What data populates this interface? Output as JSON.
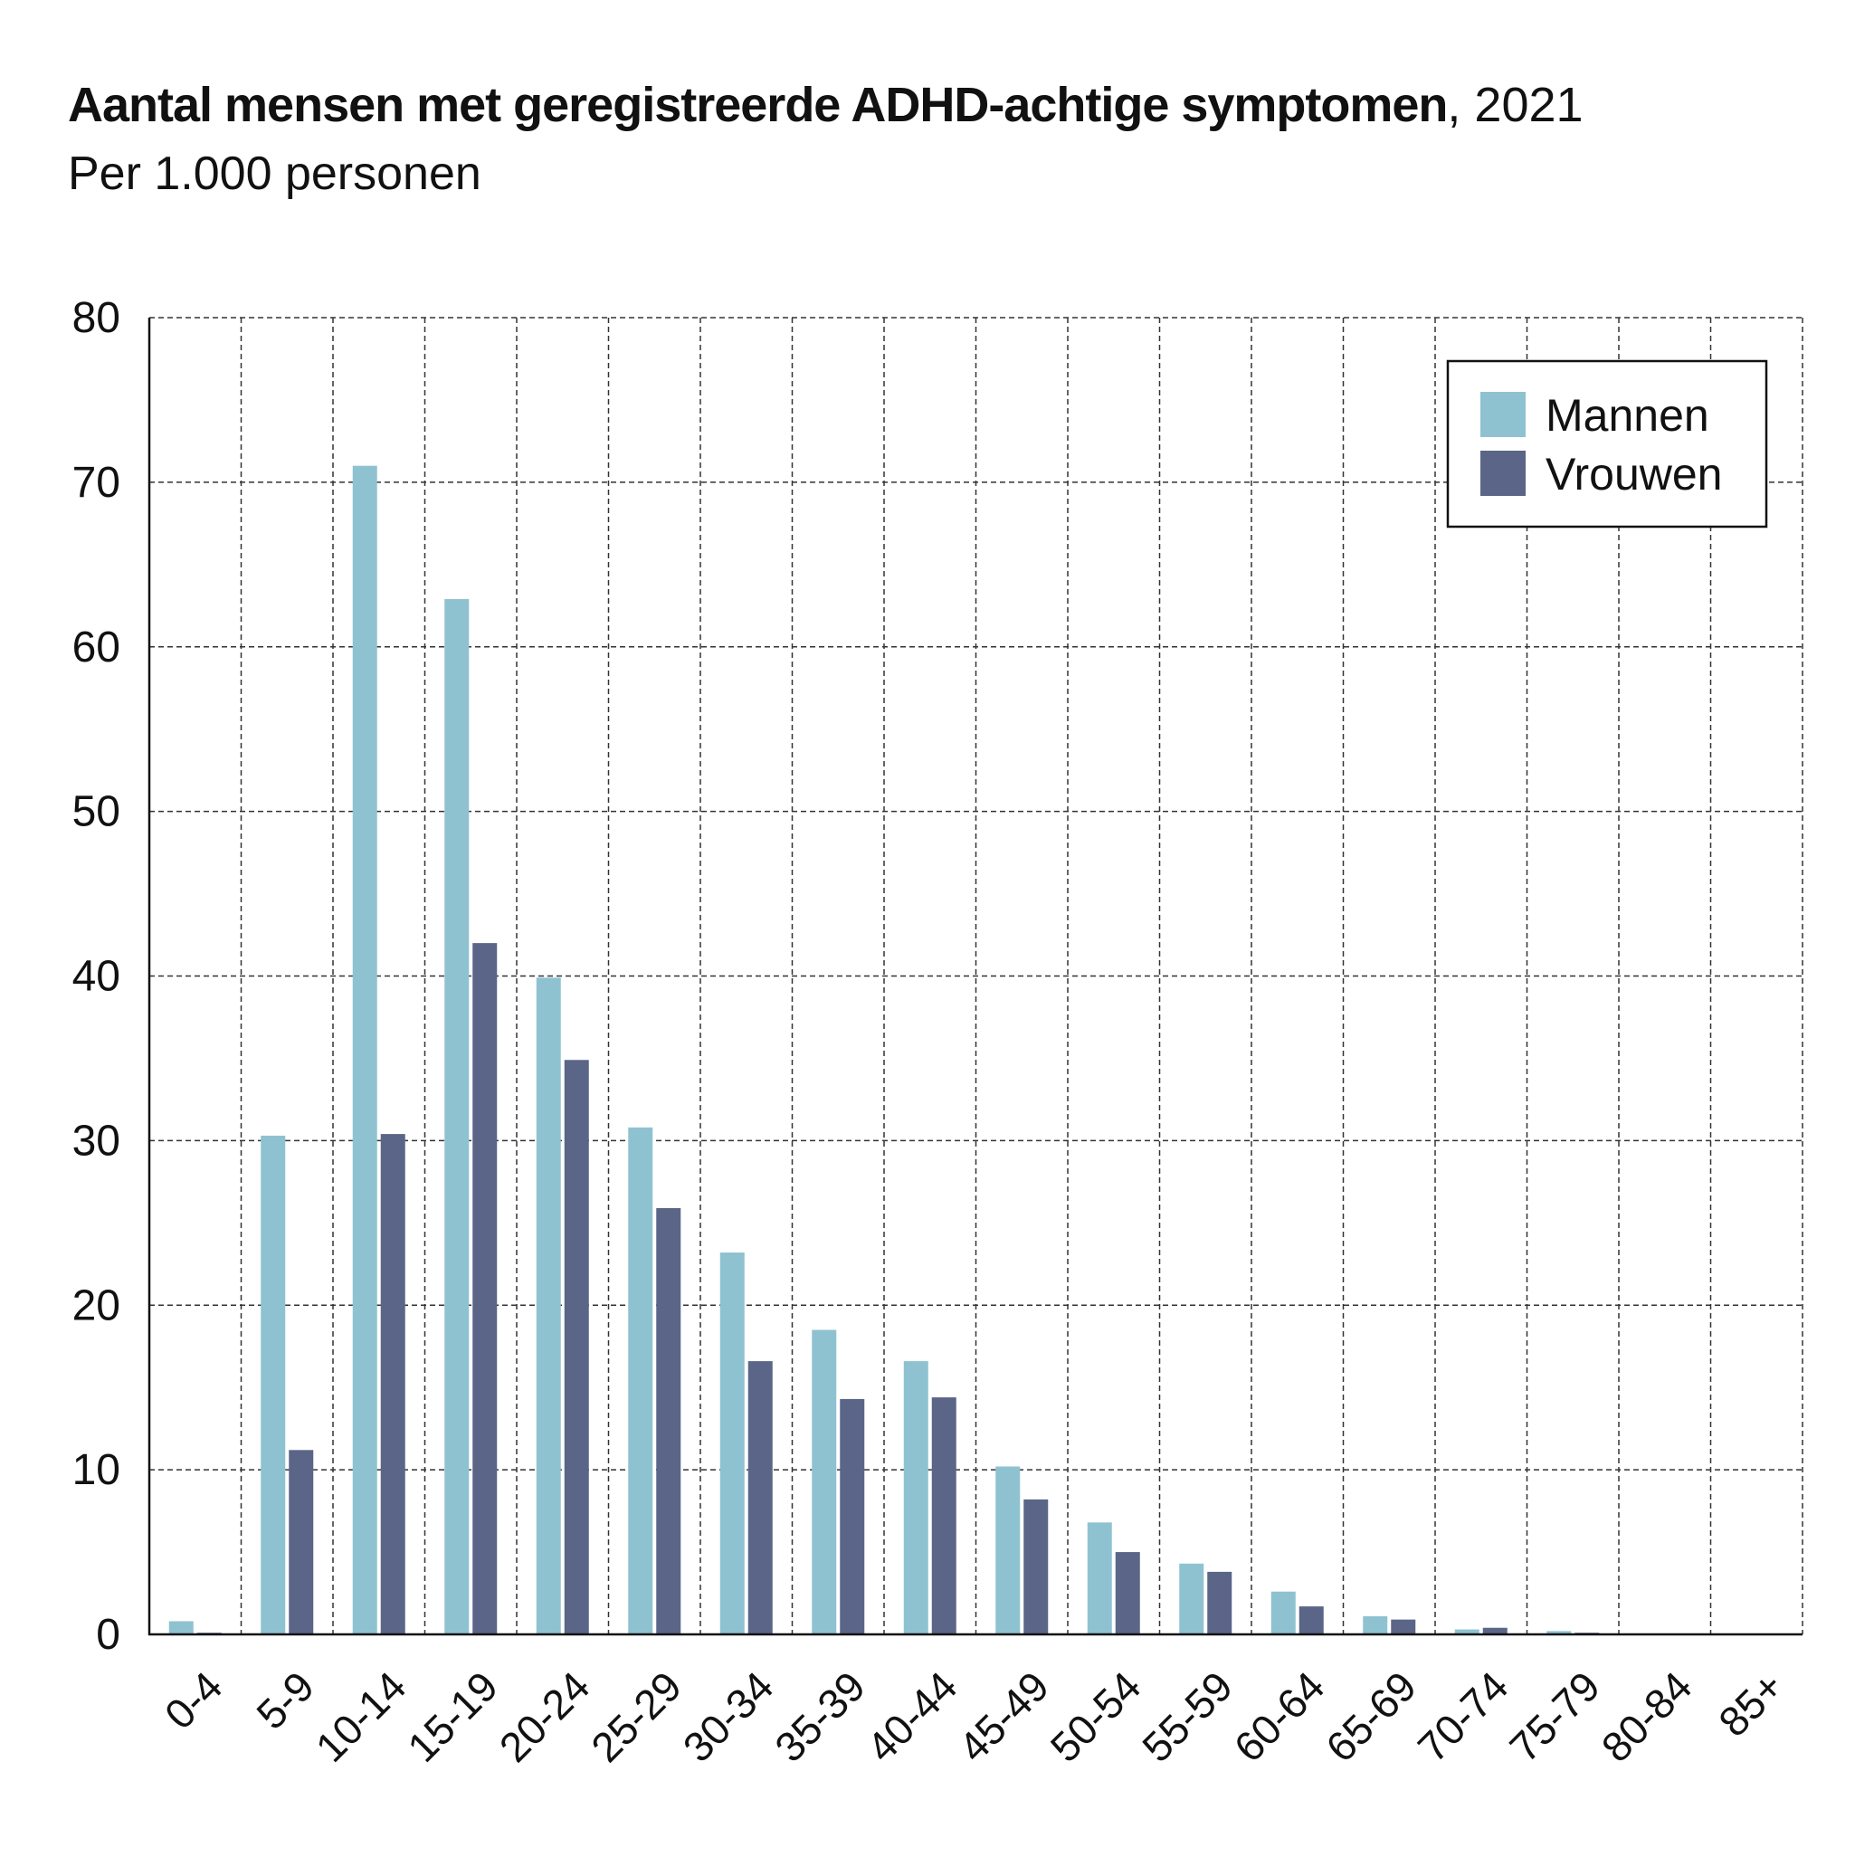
{
  "title": "Aantal mensen met geregistreerde ADHD-achtige symptomen",
  "title_suffix": ", 2021",
  "subtitle": "Per 1.000 personen",
  "colors": {
    "mannen": "#8fc2d1",
    "vrouwen": "#5a6588",
    "grid": "#333333",
    "axis": "#111111"
  },
  "chart_data": {
    "type": "bar",
    "title": "Aantal mensen met geregistreerde ADHD-achtige symptomen, 2021",
    "subtitle": "Per 1.000 personen",
    "xlabel": "",
    "ylabel": "",
    "ylim": [
      0,
      80
    ],
    "yticks": [
      "0",
      "10",
      "20",
      "30",
      "40",
      "50",
      "60",
      "70",
      "80"
    ],
    "grid": true,
    "grid_style": "dashed",
    "legend_position": "top-right",
    "categories": [
      "0-4",
      "5-9",
      "10-14",
      "15-19",
      "20-24",
      "25-29",
      "30-34",
      "35-39",
      "40-44",
      "45-49",
      "50-54",
      "55-59",
      "60-64",
      "65-69",
      "70-74",
      "75-79",
      "80-84",
      "85+"
    ],
    "series": [
      {
        "name": "Mannen",
        "color": "#8fc2d1",
        "values": [
          0.8,
          30.3,
          71.0,
          62.9,
          39.9,
          30.8,
          23.2,
          18.5,
          16.6,
          10.2,
          6.8,
          4.3,
          2.6,
          1.1,
          0.3,
          0.2,
          0.0,
          0.0
        ]
      },
      {
        "name": "Vrouwen",
        "color": "#5a6588",
        "values": [
          0.1,
          11.2,
          30.4,
          42.0,
          34.9,
          25.9,
          16.6,
          14.3,
          14.4,
          8.2,
          5.0,
          3.8,
          1.7,
          0.9,
          0.4,
          0.1,
          0.0,
          0.0
        ]
      }
    ]
  }
}
